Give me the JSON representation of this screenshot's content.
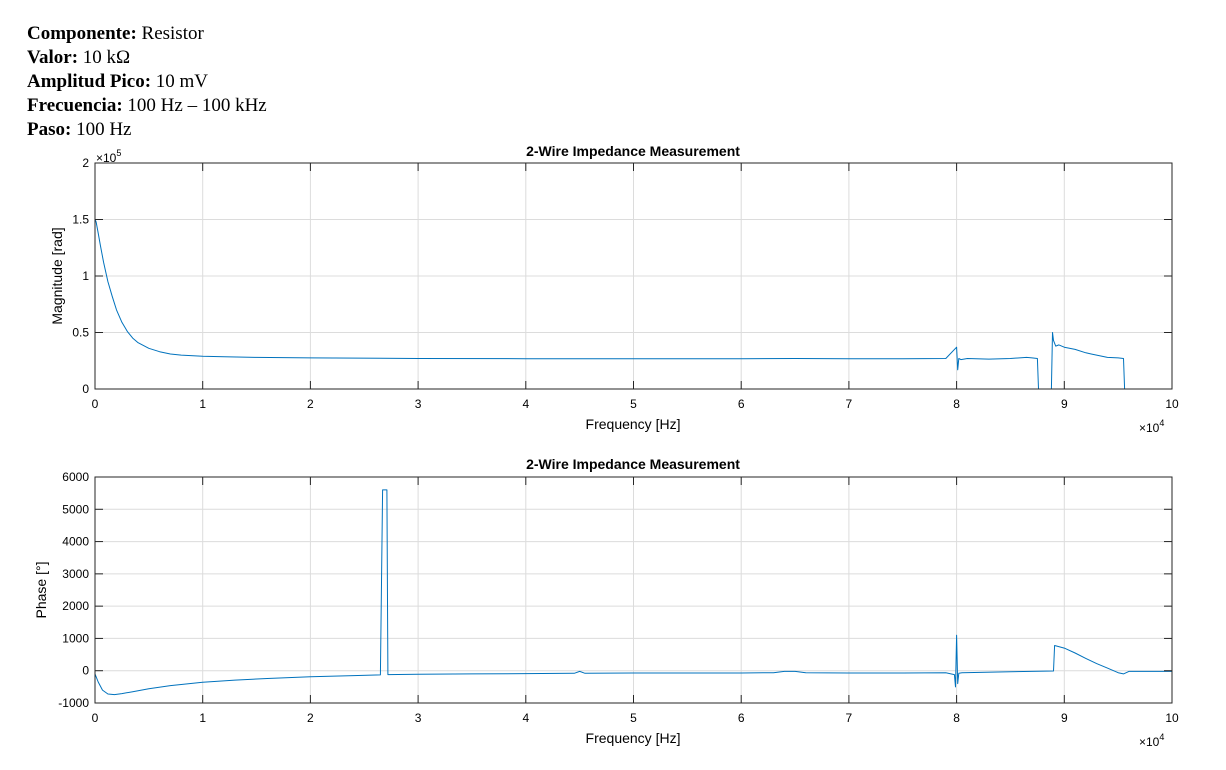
{
  "header": {
    "lines": [
      {
        "label": "Componente:",
        "value": "Resistor"
      },
      {
        "label": "Valor:",
        "value": "10 kΩ"
      },
      {
        "label": "Amplitud Pico:",
        "value": "10 mV"
      },
      {
        "label": "Frecuencia:",
        "value": "100 Hz – 100 kHz"
      },
      {
        "label": "Paso:",
        "value": "100 Hz"
      }
    ]
  },
  "line_color": "#0072BD",
  "chart_data": [
    {
      "type": "line",
      "title": "2-Wire Impedance Measurement",
      "xlabel": "Frequency [Hz]",
      "ylabel": "Magnitude [rad]",
      "x_exponent": "×10",
      "x_exponent_power": "4",
      "y_exponent": "×10",
      "y_exponent_power": "5",
      "xlim": [
        0,
        100000
      ],
      "ylim": [
        0,
        200000
      ],
      "x_ticks": [
        0,
        10000,
        20000,
        30000,
        40000,
        50000,
        60000,
        70000,
        80000,
        90000,
        100000
      ],
      "x_tick_labels": [
        "0",
        "1",
        "2",
        "3",
        "4",
        "5",
        "6",
        "7",
        "8",
        "9",
        "10"
      ],
      "y_ticks": [
        0,
        50000,
        100000,
        150000,
        200000
      ],
      "y_tick_labels": [
        "0",
        "0.5",
        "1",
        "1.5",
        "2"
      ],
      "grid": true,
      "series": [
        {
          "x": [
            0,
            100,
            300,
            500,
            800,
            1200,
            1600,
            2000,
            2500,
            3000,
            3500,
            4000,
            5000,
            6000,
            7000,
            8000,
            10000,
            12000,
            15000,
            20000,
            30000,
            40000,
            50000,
            60000,
            65000,
            70000,
            75000,
            79000,
            80000,
            80100,
            80200,
            80400,
            81000,
            83000,
            85000,
            86500,
            87000,
            87500,
            87600,
            87700,
            88500,
            88800,
            88900,
            89000,
            89200,
            89500,
            90000,
            91000,
            92000,
            92500,
            93000,
            94000,
            95000,
            95500,
            95600,
            96000,
            100000
          ],
          "y": [
            150000,
            148000,
            138000,
            127000,
            112000,
            95000,
            82000,
            70000,
            59000,
            51000,
            45000,
            41000,
            36000,
            33000,
            31000,
            30000,
            29000,
            28500,
            28000,
            27500,
            27000,
            26800,
            26700,
            26700,
            27000,
            26800,
            26800,
            27000,
            37000,
            17000,
            27000,
            26000,
            27000,
            26500,
            27000,
            28000,
            27500,
            27000,
            0,
            0,
            0,
            0,
            50000,
            43000,
            38000,
            39000,
            37000,
            35000,
            32000,
            31000,
            30000,
            28000,
            27500,
            27000,
            0,
            0,
            0
          ]
        }
      ]
    },
    {
      "type": "line",
      "title": "2-Wire Impedance Measurement",
      "xlabel": "Frequency [Hz]",
      "ylabel": "Phase [°]",
      "x_exponent": "×10",
      "x_exponent_power": "4",
      "xlim": [
        0,
        100000
      ],
      "ylim": [
        -1000,
        6000
      ],
      "x_ticks": [
        0,
        10000,
        20000,
        30000,
        40000,
        50000,
        60000,
        70000,
        80000,
        90000,
        100000
      ],
      "x_tick_labels": [
        "0",
        "1",
        "2",
        "3",
        "4",
        "5",
        "6",
        "7",
        "8",
        "9",
        "10"
      ],
      "y_ticks": [
        -1000,
        0,
        1000,
        2000,
        3000,
        4000,
        5000,
        6000
      ],
      "y_tick_labels": [
        "-1000",
        "0",
        "1000",
        "2000",
        "3000",
        "4000",
        "5000",
        "6000"
      ],
      "grid": true,
      "series": [
        {
          "x": [
            0,
            300,
            700,
            1200,
            1800,
            2500,
            3500,
            5000,
            7000,
            10000,
            13000,
            16000,
            20000,
            24000,
            26500,
            26700,
            27000,
            27100,
            27200,
            30000,
            35000,
            40000,
            44500,
            45000,
            45500,
            50000,
            55000,
            60000,
            63000,
            64000,
            65000,
            66000,
            70000,
            75000,
            79000,
            79800,
            79900,
            80000,
            80100,
            80200,
            80500,
            85000,
            89000,
            89100,
            90000,
            91000,
            92000,
            93000,
            94000,
            95000,
            95500,
            96000,
            100000
          ],
          "y": [
            -100,
            -350,
            -600,
            -720,
            -740,
            -710,
            -650,
            -560,
            -460,
            -360,
            -290,
            -240,
            -190,
            -150,
            -130,
            5600,
            5600,
            5600,
            -120,
            -110,
            -100,
            -90,
            -80,
            -20,
            -80,
            -70,
            -70,
            -70,
            -60,
            -20,
            -20,
            -60,
            -70,
            -70,
            -60,
            -120,
            -500,
            1100,
            -400,
            -80,
            -60,
            -30,
            -10,
            780,
            700,
            550,
            380,
            220,
            80,
            -60,
            -100,
            -20,
            -20
          ]
        }
      ]
    }
  ]
}
